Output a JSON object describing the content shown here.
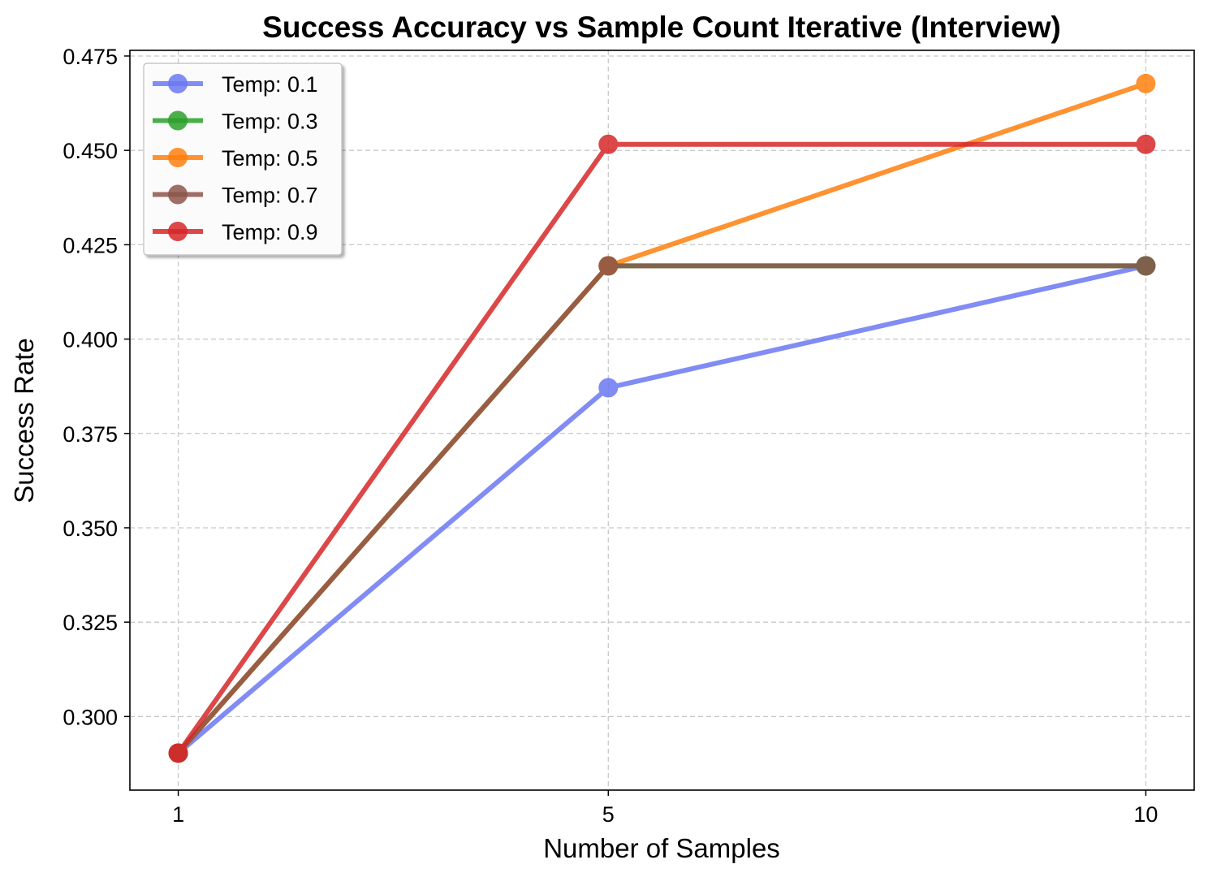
{
  "chart_data": {
    "type": "line",
    "title": "Success Accuracy vs Sample Count Iterative (Interview)",
    "xlabel": "Number of Samples",
    "ylabel": "Success Rate",
    "x": [
      1,
      5,
      10
    ],
    "x_tick_labels": [
      "1",
      "5",
      "10"
    ],
    "xlim": [
      0.55,
      10.45
    ],
    "ylim": [
      0.2805,
      0.4765
    ],
    "y_ticks": [
      0.3,
      0.325,
      0.35,
      0.375,
      0.4,
      0.425,
      0.45,
      0.475
    ],
    "y_tick_labels": [
      "0.300",
      "0.325",
      "0.350",
      "0.375",
      "0.400",
      "0.425",
      "0.450",
      "0.475"
    ],
    "grid": true,
    "legend_position": "upper-left",
    "series": [
      {
        "name": "Temp: 0.1",
        "color": "#6b78f2",
        "values": [
          0.2903,
          0.3871,
          0.4194
        ]
      },
      {
        "name": "Temp: 0.3",
        "color": "#2ca02c",
        "values": [
          0.2903,
          0.4194,
          0.4194
        ]
      },
      {
        "name": "Temp: 0.5",
        "color": "#ff7f0e",
        "values": [
          0.2903,
          0.4194,
          0.4677
        ]
      },
      {
        "name": "Temp: 0.7",
        "color": "#8c564b",
        "values": [
          0.2903,
          0.4194,
          0.4194
        ]
      },
      {
        "name": "Temp: 0.9",
        "color": "#d62728",
        "values": [
          0.2903,
          0.4516,
          0.4516
        ]
      }
    ]
  }
}
